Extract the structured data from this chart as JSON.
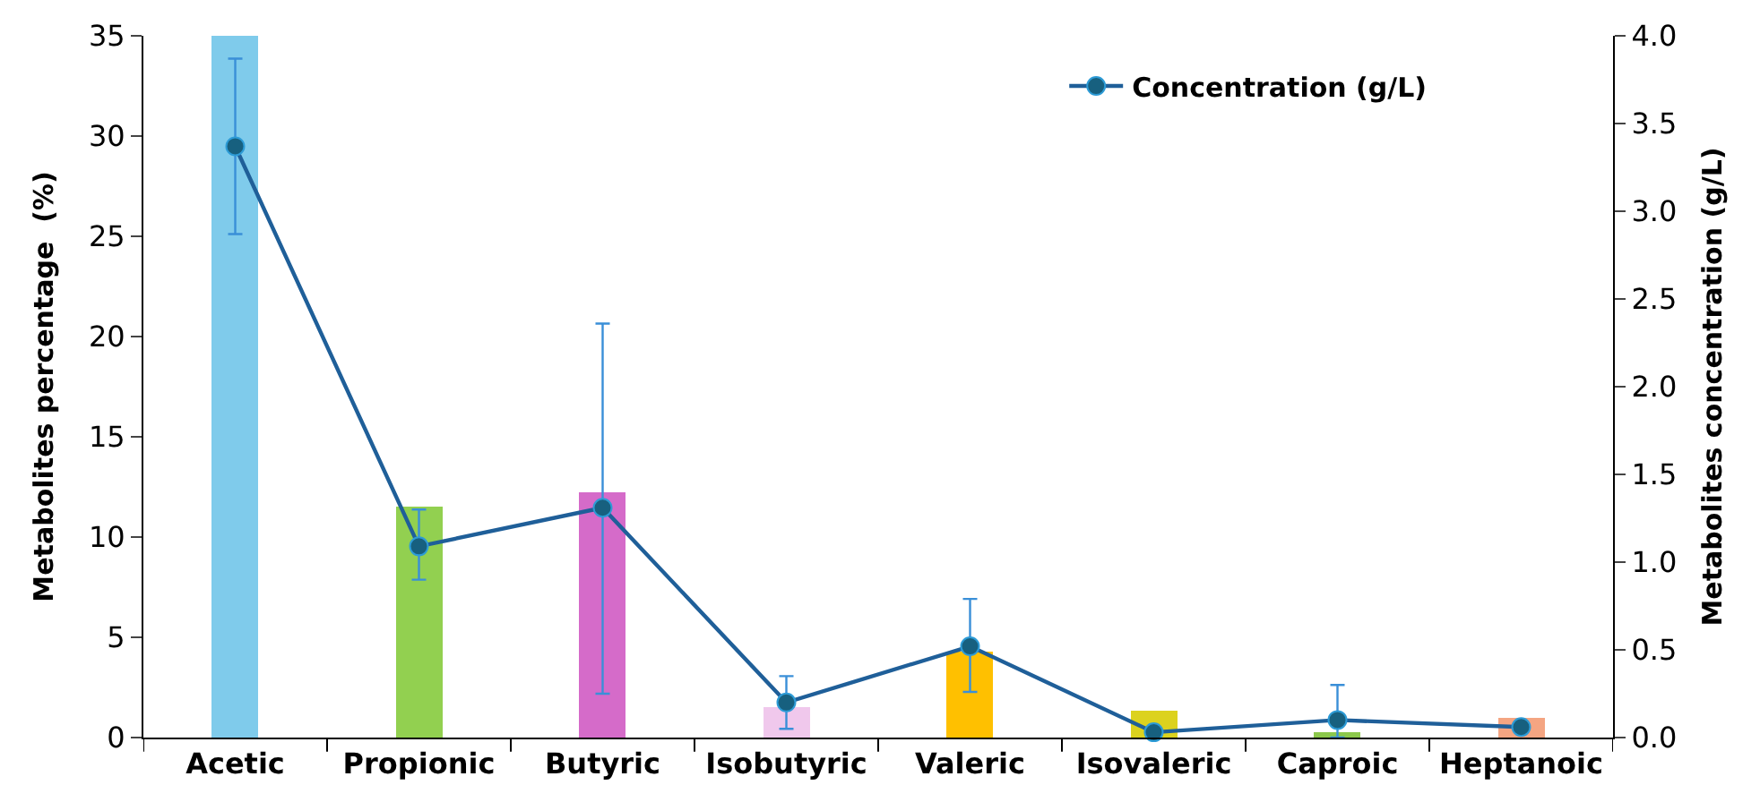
{
  "chart_data": {
    "type": "bar",
    "categories": [
      "Acetic",
      "Propionic",
      "Butyric",
      "Isobutyric",
      "Valeric",
      "Isovaleric",
      "Caproic",
      "Heptanoic"
    ],
    "ylabel": "Metabolites percentage  (%)",
    "y2label": "Metabolites concentration (g/L)",
    "ylim": [
      0,
      35
    ],
    "yticks": [
      0,
      5,
      10,
      15,
      20,
      25,
      30,
      35
    ],
    "y2lim": [
      0,
      4.0
    ],
    "y2ticks": [
      {
        "value": 0,
        "label": "0.0"
      },
      0.5,
      {
        "value": 1,
        "label": "1.0"
      },
      1.5,
      {
        "value": 2,
        "label": "2.0"
      },
      2.5,
      {
        "value": 3,
        "label": "3.0"
      },
      3.5,
      {
        "value": 4,
        "label": "4.0"
      }
    ],
    "legend": "top right",
    "series": [
      {
        "colors": [
          "#7fcbeb",
          "#92d050",
          "#d56bc9",
          "#f0c8ec",
          "#ffc000",
          "#dcd21e",
          "#8cc84b",
          "#f4a582"
        ],
        "values": [
          35,
          11.5,
          12.2,
          1.5,
          4.3,
          1.3,
          0.3,
          1.0
        ]
      },
      {
        "type": "line",
        "axis": "y2",
        "name": "Concentration (g/L)",
        "color": "#1f5f99",
        "marker": "circle",
        "line_style": "solid",
        "values": [
          3.37,
          1.09,
          1.31,
          0.2,
          0.52,
          0.03,
          0.1,
          0.06
        ],
        "errors": [
          [
            2.87,
            3.87
          ],
          [
            0.9,
            1.3
          ],
          [
            0.25,
            2.36
          ],
          [
            0.05,
            0.35
          ],
          [
            0.26,
            0.79
          ],
          null,
          [
            0.0,
            0.3
          ],
          null
        ]
      }
    ]
  }
}
